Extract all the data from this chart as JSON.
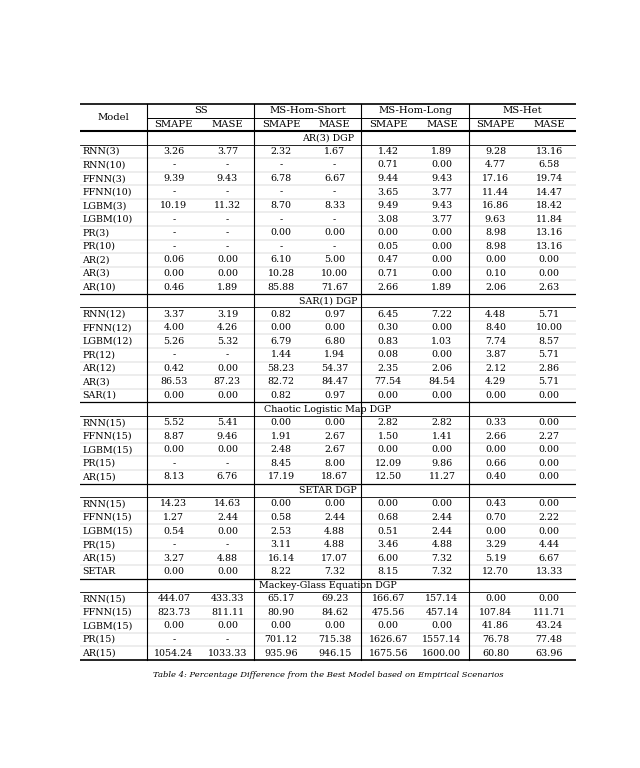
{
  "caption": "Table 4: Percentage Difference from the Best Model based on Empirical Scenarios",
  "col_groups": [
    "SS",
    "MS-Hom-Short",
    "MS-Hom-Long",
    "MS-Het"
  ],
  "sub_cols": [
    "SMAPE",
    "MASE"
  ],
  "sections": [
    {
      "title": "AR(3) DGP",
      "rows": [
        [
          "RNN(3)",
          "3.26",
          "3.77",
          "2.32",
          "1.67",
          "1.42",
          "1.89",
          "9.28",
          "13.16"
        ],
        [
          "RNN(10)",
          "-",
          "-",
          "-",
          "-",
          "0.71",
          "0.00",
          "4.77",
          "6.58"
        ],
        [
          "FFNN(3)",
          "9.39",
          "9.43",
          "6.78",
          "6.67",
          "9.44",
          "9.43",
          "17.16",
          "19.74"
        ],
        [
          "FFNN(10)",
          "-",
          "-",
          "-",
          "-",
          "3.65",
          "3.77",
          "11.44",
          "14.47"
        ],
        [
          "LGBM(3)",
          "10.19",
          "11.32",
          "8.70",
          "8.33",
          "9.49",
          "9.43",
          "16.86",
          "18.42"
        ],
        [
          "LGBM(10)",
          "-",
          "-",
          "-",
          "-",
          "3.08",
          "3.77",
          "9.63",
          "11.84"
        ],
        [
          "PR(3)",
          "-",
          "-",
          "0.00",
          "0.00",
          "0.00",
          "0.00",
          "8.98",
          "13.16"
        ],
        [
          "PR(10)",
          "-",
          "-",
          "-",
          "-",
          "0.05",
          "0.00",
          "8.98",
          "13.16"
        ],
        [
          "AR(2)",
          "0.06",
          "0.00",
          "6.10",
          "5.00",
          "0.47",
          "0.00",
          "0.00",
          "0.00"
        ],
        [
          "AR(3)",
          "0.00",
          "0.00",
          "10.28",
          "10.00",
          "0.71",
          "0.00",
          "0.10",
          "0.00"
        ],
        [
          "AR(10)",
          "0.46",
          "1.89",
          "85.88",
          "71.67",
          "2.66",
          "1.89",
          "2.06",
          "2.63"
        ]
      ]
    },
    {
      "title": "SAR(1) DGP",
      "rows": [
        [
          "RNN(12)",
          "3.37",
          "3.19",
          "0.82",
          "0.97",
          "6.45",
          "7.22",
          "4.48",
          "5.71"
        ],
        [
          "FFNN(12)",
          "4.00",
          "4.26",
          "0.00",
          "0.00",
          "0.30",
          "0.00",
          "8.40",
          "10.00"
        ],
        [
          "LGBM(12)",
          "5.26",
          "5.32",
          "6.79",
          "6.80",
          "0.83",
          "1.03",
          "7.74",
          "8.57"
        ],
        [
          "PR(12)",
          "-",
          "-",
          "1.44",
          "1.94",
          "0.08",
          "0.00",
          "3.87",
          "5.71"
        ],
        [
          "AR(12)",
          "0.42",
          "0.00",
          "58.23",
          "54.37",
          "2.35",
          "2.06",
          "2.12",
          "2.86"
        ],
        [
          "AR(3)",
          "86.53",
          "87.23",
          "82.72",
          "84.47",
          "77.54",
          "84.54",
          "4.29",
          "5.71"
        ],
        [
          "SAR(1)",
          "0.00",
          "0.00",
          "0.82",
          "0.97",
          "0.00",
          "0.00",
          "0.00",
          "0.00"
        ]
      ]
    },
    {
      "title": "Chaotic Logistic Map DGP",
      "rows": [
        [
          "RNN(15)",
          "5.52",
          "5.41",
          "0.00",
          "0.00",
          "2.82",
          "2.82",
          "0.33",
          "0.00"
        ],
        [
          "FFNN(15)",
          "8.87",
          "9.46",
          "1.91",
          "2.67",
          "1.50",
          "1.41",
          "2.66",
          "2.27"
        ],
        [
          "LGBM(15)",
          "0.00",
          "0.00",
          "2.48",
          "2.67",
          "0.00",
          "0.00",
          "0.00",
          "0.00"
        ],
        [
          "PR(15)",
          "-",
          "-",
          "8.45",
          "8.00",
          "12.09",
          "9.86",
          "0.66",
          "0.00"
        ],
        [
          "AR(15)",
          "8.13",
          "6.76",
          "17.19",
          "18.67",
          "12.50",
          "11.27",
          "0.40",
          "0.00"
        ]
      ]
    },
    {
      "title": "SETAR DGP",
      "rows": [
        [
          "RNN(15)",
          "14.23",
          "14.63",
          "0.00",
          "0.00",
          "0.00",
          "0.00",
          "0.43",
          "0.00"
        ],
        [
          "FFNN(15)",
          "1.27",
          "2.44",
          "0.58",
          "2.44",
          "0.68",
          "2.44",
          "0.70",
          "2.22"
        ],
        [
          "LGBM(15)",
          "0.54",
          "0.00",
          "2.53",
          "4.88",
          "0.51",
          "2.44",
          "0.00",
          "0.00"
        ],
        [
          "PR(15)",
          "-",
          "-",
          "3.11",
          "4.88",
          "3.46",
          "4.88",
          "3.29",
          "4.44"
        ],
        [
          "AR(15)",
          "3.27",
          "4.88",
          "16.14",
          "17.07",
          "6.00",
          "7.32",
          "5.19",
          "6.67"
        ],
        [
          "SETAR",
          "0.00",
          "0.00",
          "8.22",
          "7.32",
          "8.15",
          "7.32",
          "12.70",
          "13.33"
        ]
      ]
    },
    {
      "title": "Mackey-Glass Equation DGP",
      "rows": [
        [
          "RNN(15)",
          "444.07",
          "433.33",
          "65.17",
          "69.23",
          "166.67",
          "157.14",
          "0.00",
          "0.00"
        ],
        [
          "FFNN(15)",
          "823.73",
          "811.11",
          "80.90",
          "84.62",
          "475.56",
          "457.14",
          "107.84",
          "111.71"
        ],
        [
          "LGBM(15)",
          "0.00",
          "0.00",
          "0.00",
          "0.00",
          "0.00",
          "0.00",
          "41.86",
          "43.24"
        ],
        [
          "PR(15)",
          "-",
          "-",
          "701.12",
          "715.38",
          "1626.67",
          "1557.14",
          "76.78",
          "77.48"
        ],
        [
          "AR(15)",
          "1054.24",
          "1033.33",
          "935.96",
          "946.15",
          "1675.56",
          "1600.00",
          "60.80",
          "63.96"
        ]
      ]
    }
  ]
}
